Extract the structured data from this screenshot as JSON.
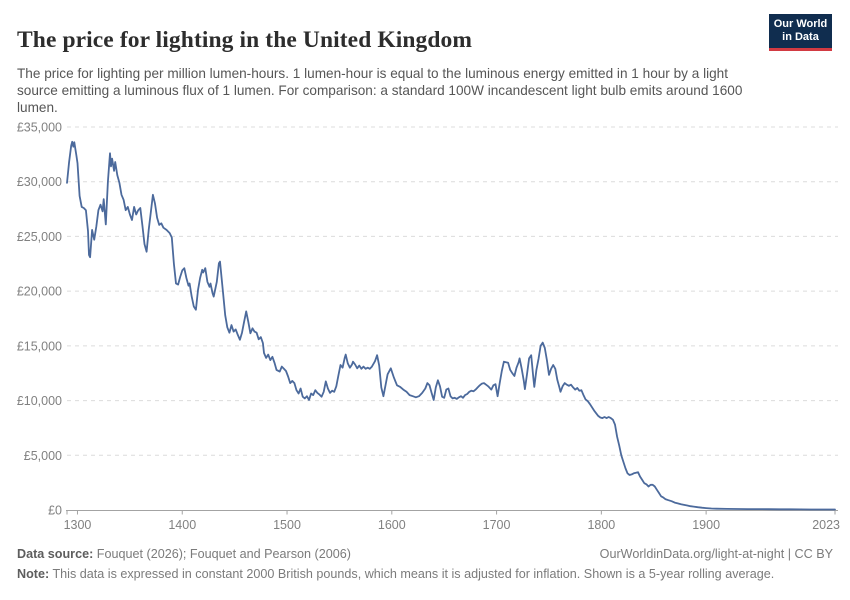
{
  "header": {
    "title": "The price for lighting in the United Kingdom",
    "subtitle": "The price for lighting per million lumen-hours. 1 lumen-hour is equal to the luminous energy emitted in 1 hour by a light source emitting a luminous flux of 1 lumen. For comparison: a standard 100W incandescent light bulb emits around 1600 lumen.",
    "logo": {
      "line1": "Our World",
      "line2": "in Data",
      "bg_color": "#102d4f",
      "bar_color": "#d23a42"
    }
  },
  "footer": {
    "data_source_label": "Data source:",
    "data_source_text": "Fouquet (2026); Fouquet and Pearson (2006)",
    "attribution": "OurWorldinData.org/light-at-night | CC BY",
    "note_label": "Note:",
    "note_text": "This data is expressed in constant 2000 British pounds, which means it is adjusted for inflation. Shown is a 5-year rolling average."
  },
  "chart_data": {
    "type": "line",
    "title": "The price for lighting in the United Kingdom",
    "xlabel": "",
    "ylabel": "",
    "x_range": [
      1290,
      2023
    ],
    "y_range": [
      0,
      35000
    ],
    "grid": "horizontal-dashed",
    "legend": "none",
    "line_color": "#4c6a9c",
    "y_ticks": [
      {
        "v": 0,
        "label": "£0"
      },
      {
        "v": 5000,
        "label": "£5,000"
      },
      {
        "v": 10000,
        "label": "£10,000"
      },
      {
        "v": 15000,
        "label": "£15,000"
      },
      {
        "v": 20000,
        "label": "£20,000"
      },
      {
        "v": 25000,
        "label": "£25,000"
      },
      {
        "v": 30000,
        "label": "£30,000"
      },
      {
        "v": 35000,
        "label": "£35,000"
      }
    ],
    "x_ticks": [
      {
        "v": 1290,
        "label": ""
      },
      {
        "v": 1300,
        "label": "1300"
      },
      {
        "v": 1400,
        "label": "1400"
      },
      {
        "v": 1500,
        "label": "1500"
      },
      {
        "v": 1600,
        "label": "1600"
      },
      {
        "v": 1700,
        "label": "1700"
      },
      {
        "v": 1800,
        "label": "1800"
      },
      {
        "v": 1900,
        "label": "1900"
      },
      {
        "v": 2023,
        "label": "2023"
      }
    ],
    "points": [
      [
        1290,
        29900
      ],
      [
        1292,
        31800
      ],
      [
        1294,
        33300
      ],
      [
        1295,
        33650
      ],
      [
        1296,
        33200
      ],
      [
        1297,
        33600
      ],
      [
        1299,
        32400
      ],
      [
        1300,
        31700
      ],
      [
        1302,
        28700
      ],
      [
        1304,
        27700
      ],
      [
        1306,
        27600
      ],
      [
        1308,
        27400
      ],
      [
        1310,
        25500
      ],
      [
        1311,
        23300
      ],
      [
        1312,
        23100
      ],
      [
        1314,
        25600
      ],
      [
        1316,
        24700
      ],
      [
        1318,
        25900
      ],
      [
        1320,
        27400
      ],
      [
        1322,
        27900
      ],
      [
        1324,
        27300
      ],
      [
        1325,
        28400
      ],
      [
        1327,
        26100
      ],
      [
        1329,
        30000
      ],
      [
        1331,
        32600
      ],
      [
        1332,
        31400
      ],
      [
        1333,
        32100
      ],
      [
        1335,
        31000
      ],
      [
        1336,
        31800
      ],
      [
        1338,
        30600
      ],
      [
        1340,
        29900
      ],
      [
        1342,
        28800
      ],
      [
        1344,
        28350
      ],
      [
        1346,
        27400
      ],
      [
        1348,
        27700
      ],
      [
        1350,
        27000
      ],
      [
        1352,
        26500
      ],
      [
        1354,
        27700
      ],
      [
        1356,
        27000
      ],
      [
        1358,
        27400
      ],
      [
        1360,
        27600
      ],
      [
        1362,
        26000
      ],
      [
        1364,
        24300
      ],
      [
        1366,
        23600
      ],
      [
        1368,
        25600
      ],
      [
        1370,
        27200
      ],
      [
        1372,
        28800
      ],
      [
        1374,
        28000
      ],
      [
        1376,
        26700
      ],
      [
        1378,
        26050
      ],
      [
        1380,
        26200
      ],
      [
        1382,
        25800
      ],
      [
        1385,
        25600
      ],
      [
        1388,
        25300
      ],
      [
        1390,
        24900
      ],
      [
        1392,
        22500
      ],
      [
        1394,
        20700
      ],
      [
        1396,
        20600
      ],
      [
        1398,
        21300
      ],
      [
        1400,
        21900
      ],
      [
        1402,
        22100
      ],
      [
        1404,
        21200
      ],
      [
        1406,
        20500
      ],
      [
        1407,
        20700
      ],
      [
        1409,
        19500
      ],
      [
        1411,
        18600
      ],
      [
        1413,
        18300
      ],
      [
        1415,
        20100
      ],
      [
        1417,
        21200
      ],
      [
        1419,
        21950
      ],
      [
        1420,
        21700
      ],
      [
        1422,
        22100
      ],
      [
        1424,
        20850
      ],
      [
        1426,
        20400
      ],
      [
        1427,
        20700
      ],
      [
        1429,
        19800
      ],
      [
        1430,
        19500
      ],
      [
        1433,
        20850
      ],
      [
        1435,
        22550
      ],
      [
        1436,
        22700
      ],
      [
        1439,
        19800
      ],
      [
        1441,
        17800
      ],
      [
        1443,
        16700
      ],
      [
        1445,
        16200
      ],
      [
        1447,
        16900
      ],
      [
        1449,
        16300
      ],
      [
        1451,
        16500
      ],
      [
        1453,
        16000
      ],
      [
        1455,
        15550
      ],
      [
        1457,
        16200
      ],
      [
        1459,
        17200
      ],
      [
        1461,
        18150
      ],
      [
        1463,
        17200
      ],
      [
        1465,
        16150
      ],
      [
        1467,
        16600
      ],
      [
        1469,
        16300
      ],
      [
        1471,
        16200
      ],
      [
        1473,
        15600
      ],
      [
        1475,
        15800
      ],
      [
        1477,
        15250
      ],
      [
        1478,
        14350
      ],
      [
        1480,
        13900
      ],
      [
        1482,
        14200
      ],
      [
        1484,
        13700
      ],
      [
        1486,
        14000
      ],
      [
        1488,
        13450
      ],
      [
        1490,
        12800
      ],
      [
        1493,
        12650
      ],
      [
        1495,
        13100
      ],
      [
        1497,
        12900
      ],
      [
        1499,
        12700
      ],
      [
        1501,
        12200
      ],
      [
        1503,
        11600
      ],
      [
        1505,
        11800
      ],
      [
        1507,
        11600
      ],
      [
        1509,
        10950
      ],
      [
        1511,
        10650
      ],
      [
        1513,
        11100
      ],
      [
        1515,
        10350
      ],
      [
        1517,
        10200
      ],
      [
        1519,
        10400
      ],
      [
        1521,
        10050
      ],
      [
        1523,
        10650
      ],
      [
        1525,
        10500
      ],
      [
        1527,
        10950
      ],
      [
        1529,
        10700
      ],
      [
        1531,
        10550
      ],
      [
        1533,
        10350
      ],
      [
        1535,
        10800
      ],
      [
        1537,
        11750
      ],
      [
        1539,
        11100
      ],
      [
        1541,
        10700
      ],
      [
        1543,
        10900
      ],
      [
        1545,
        10800
      ],
      [
        1547,
        11300
      ],
      [
        1549,
        12300
      ],
      [
        1551,
        13250
      ],
      [
        1553,
        13000
      ],
      [
        1555,
        13900
      ],
      [
        1556,
        14200
      ],
      [
        1558,
        13400
      ],
      [
        1560,
        13000
      ],
      [
        1562,
        13300
      ],
      [
        1563,
        13550
      ],
      [
        1565,
        13300
      ],
      [
        1567,
        12950
      ],
      [
        1569,
        13200
      ],
      [
        1571,
        12900
      ],
      [
        1573,
        13100
      ],
      [
        1575,
        12900
      ],
      [
        1577,
        13000
      ],
      [
        1579,
        12900
      ],
      [
        1581,
        13100
      ],
      [
        1584,
        13600
      ],
      [
        1586,
        14150
      ],
      [
        1588,
        13200
      ],
      [
        1590,
        11200
      ],
      [
        1592,
        10400
      ],
      [
        1594,
        11400
      ],
      [
        1596,
        12400
      ],
      [
        1599,
        12950
      ],
      [
        1602,
        12100
      ],
      [
        1605,
        11400
      ],
      [
        1608,
        11250
      ],
      [
        1611,
        11000
      ],
      [
        1614,
        10800
      ],
      [
        1617,
        10500
      ],
      [
        1620,
        10400
      ],
      [
        1623,
        10300
      ],
      [
        1626,
        10400
      ],
      [
        1629,
        10700
      ],
      [
        1632,
        11100
      ],
      [
        1634,
        11600
      ],
      [
        1636,
        11400
      ],
      [
        1638,
        10700
      ],
      [
        1640,
        10050
      ],
      [
        1642,
        11200
      ],
      [
        1644,
        11850
      ],
      [
        1646,
        11300
      ],
      [
        1648,
        10350
      ],
      [
        1650,
        10250
      ],
      [
        1652,
        11000
      ],
      [
        1654,
        11100
      ],
      [
        1656,
        10400
      ],
      [
        1658,
        10200
      ],
      [
        1660,
        10250
      ],
      [
        1662,
        10150
      ],
      [
        1664,
        10300
      ],
      [
        1666,
        10400
      ],
      [
        1668,
        10250
      ],
      [
        1670,
        10500
      ],
      [
        1672,
        10600
      ],
      [
        1674,
        10800
      ],
      [
        1676,
        10900
      ],
      [
        1678,
        10850
      ],
      [
        1680,
        11000
      ],
      [
        1682,
        11200
      ],
      [
        1684,
        11400
      ],
      [
        1686,
        11550
      ],
      [
        1688,
        11600
      ],
      [
        1690,
        11450
      ],
      [
        1692,
        11300
      ],
      [
        1695,
        11000
      ],
      [
        1697,
        11400
      ],
      [
        1699,
        11500
      ],
      [
        1701,
        10400
      ],
      [
        1703,
        11600
      ],
      [
        1705,
        12700
      ],
      [
        1707,
        13550
      ],
      [
        1709,
        13500
      ],
      [
        1711,
        13450
      ],
      [
        1713,
        12800
      ],
      [
        1715,
        12500
      ],
      [
        1717,
        12250
      ],
      [
        1719,
        13000
      ],
      [
        1721,
        13500
      ],
      [
        1722,
        13850
      ],
      [
        1724,
        12900
      ],
      [
        1726,
        11800
      ],
      [
        1727,
        11050
      ],
      [
        1729,
        12400
      ],
      [
        1731,
        13850
      ],
      [
        1733,
        14150
      ],
      [
        1735,
        12200
      ],
      [
        1736,
        11250
      ],
      [
        1738,
        12800
      ],
      [
        1740,
        13800
      ],
      [
        1742,
        15000
      ],
      [
        1744,
        15300
      ],
      [
        1746,
        14800
      ],
      [
        1748,
        13700
      ],
      [
        1750,
        12350
      ],
      [
        1752,
        12900
      ],
      [
        1754,
        13250
      ],
      [
        1756,
        12900
      ],
      [
        1758,
        11900
      ],
      [
        1760,
        11200
      ],
      [
        1761,
        10800
      ],
      [
        1763,
        11300
      ],
      [
        1765,
        11600
      ],
      [
        1767,
        11450
      ],
      [
        1769,
        11350
      ],
      [
        1771,
        11450
      ],
      [
        1773,
        11200
      ],
      [
        1775,
        11000
      ],
      [
        1777,
        11150
      ],
      [
        1779,
        10900
      ],
      [
        1781,
        10950
      ],
      [
        1783,
        10500
      ],
      [
        1785,
        10100
      ],
      [
        1787,
        9950
      ],
      [
        1789,
        9700
      ],
      [
        1791,
        9400
      ],
      [
        1793,
        9100
      ],
      [
        1795,
        8850
      ],
      [
        1797,
        8600
      ],
      [
        1799,
        8450
      ],
      [
        1801,
        8400
      ],
      [
        1803,
        8500
      ],
      [
        1805,
        8400
      ],
      [
        1807,
        8500
      ],
      [
        1809,
        8400
      ],
      [
        1811,
        8250
      ],
      [
        1813,
        7800
      ],
      [
        1815,
        6700
      ],
      [
        1817,
        5900
      ],
      [
        1819,
        5000
      ],
      [
        1821,
        4400
      ],
      [
        1823,
        3800
      ],
      [
        1825,
        3350
      ],
      [
        1827,
        3200
      ],
      [
        1829,
        3250
      ],
      [
        1831,
        3350
      ],
      [
        1833,
        3400
      ],
      [
        1835,
        3450
      ],
      [
        1837,
        3050
      ],
      [
        1839,
        2750
      ],
      [
        1841,
        2450
      ],
      [
        1843,
        2350
      ],
      [
        1845,
        2150
      ],
      [
        1847,
        2300
      ],
      [
        1849,
        2300
      ],
      [
        1851,
        2150
      ],
      [
        1853,
        1850
      ],
      [
        1855,
        1550
      ],
      [
        1857,
        1250
      ],
      [
        1859,
        1150
      ],
      [
        1861,
        1000
      ],
      [
        1864,
        900
      ],
      [
        1867,
        800
      ],
      [
        1870,
        680
      ],
      [
        1873,
        600
      ],
      [
        1876,
        520
      ],
      [
        1879,
        470
      ],
      [
        1882,
        410
      ],
      [
        1885,
        350
      ],
      [
        1888,
        310
      ],
      [
        1892,
        260
      ],
      [
        1896,
        210
      ],
      [
        1900,
        170
      ],
      [
        1905,
        140
      ],
      [
        1910,
        120
      ],
      [
        1920,
        100
      ],
      [
        1930,
        90
      ],
      [
        1940,
        85
      ],
      [
        1950,
        78
      ],
      [
        1960,
        72
      ],
      [
        1970,
        66
      ],
      [
        1980,
        60
      ],
      [
        1990,
        55
      ],
      [
        2000,
        50
      ],
      [
        2010,
        46
      ],
      [
        2023,
        42
      ]
    ]
  }
}
